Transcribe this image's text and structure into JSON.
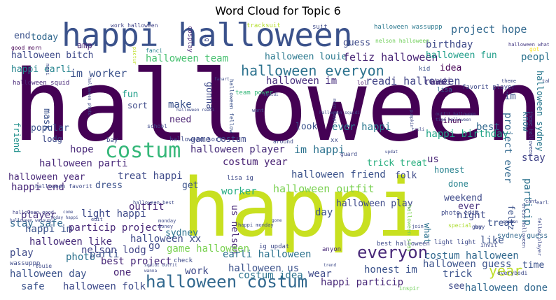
{
  "title": "Word Cloud for Topic 6",
  "words": [
    {
      "text": "halloween",
      "color": "#440154"
    },
    {
      "text": "happi",
      "color": "#c8e020"
    },
    {
      "text": "happi halloween",
      "color": "#3b528b"
    },
    {
      "text": "costum",
      "color": "#35b779"
    },
    {
      "text": "halloween costum",
      "color": "#31688e"
    },
    {
      "text": "halloween everyon",
      "color": "#2c728e"
    },
    {
      "text": "everyon",
      "color": "#482878"
    },
    {
      "text": "year",
      "color": "#bddf26"
    },
    {
      "text": "project hope",
      "color": "#31688e"
    },
    {
      "text": "birthday",
      "color": "#3e4a89"
    },
    {
      "text": "halloween bitch",
      "color": "#3e4989"
    },
    {
      "text": "halloween team",
      "color": "#46c06f"
    },
    {
      "text": "halloween louie",
      "color": "#2a788e"
    },
    {
      "text": "feliz halloween",
      "color": "#482475"
    },
    {
      "text": "halloween fun",
      "color": "#1f9e89"
    },
    {
      "text": "halloween im",
      "color": "#472f7d"
    },
    {
      "text": "readi halloween",
      "color": "#414487"
    },
    {
      "text": "im worker",
      "color": "#3b528b"
    },
    {
      "text": "happi earli",
      "color": "#25848e"
    },
    {
      "text": "halloween squid",
      "color": "#482878"
    },
    {
      "text": "halloween sydney",
      "color": "#2a788e"
    },
    {
      "text": "idea",
      "color": "#440154"
    },
    {
      "text": "peopl",
      "color": "#2c728e"
    },
    {
      "text": "readi",
      "color": "#46337e"
    },
    {
      "text": "guess",
      "color": "#3e4a89"
    },
    {
      "text": "amp",
      "color": "#482475"
    },
    {
      "text": "end",
      "color": "#3b528b"
    },
    {
      "text": "today",
      "color": "#31688e"
    },
    {
      "text": "good morn",
      "color": "#440154"
    },
    {
      "text": "work halloween",
      "color": "#414487"
    },
    {
      "text": "tracksuit",
      "color": "#b5de2b"
    },
    {
      "text": "suit",
      "color": "#3e4a89"
    },
    {
      "text": "halloween wassuppp",
      "color": "#2a788e"
    },
    {
      "text": "nelson halloween",
      "color": "#6ece58"
    },
    {
      "text": "cosplay",
      "color": "#482878"
    },
    {
      "text": "ig",
      "color": "#3e4a89"
    },
    {
      "text": "fanci",
      "color": "#26828e"
    },
    {
      "text": "pictur",
      "color": "#bddf26"
    },
    {
      "text": "got",
      "color": "#fde725"
    },
    {
      "text": "halloween what",
      "color": "#443983"
    },
    {
      "text": "lisa",
      "color": "#31688e"
    },
    {
      "text": "favorit player",
      "color": "#3e4989"
    },
    {
      "text": "kid",
      "color": "#3b528b"
    },
    {
      "text": "made",
      "color": "#472d7b"
    },
    {
      "text": "lol",
      "color": "#481668"
    },
    {
      "text": "team power",
      "color": "#35b779"
    },
    {
      "text": "halloween fellow",
      "color": "#3b528b"
    },
    {
      "text": "make",
      "color": "#3b528b"
    },
    {
      "text": "fun",
      "color": "#1f9e89"
    },
    {
      "text": "sort",
      "color": "#3e4a89"
    },
    {
      "text": "need",
      "color": "#481f70"
    },
    {
      "text": "mask",
      "color": "#3b528b"
    },
    {
      "text": "friend",
      "color": "#21918c"
    },
    {
      "text": "popular",
      "color": "#3b528b"
    },
    {
      "text": "lodg",
      "color": "#3e4a89"
    },
    {
      "text": "hope",
      "color": "#482878"
    },
    {
      "text": "halloween parti",
      "color": "#482878"
    },
    {
      "text": "halloween player",
      "color": "#472c7a"
    },
    {
      "text": "game costum",
      "color": "#3e4a89"
    },
    {
      "text": "costum year",
      "color": "#482173"
    },
    {
      "text": "im happi",
      "color": "#2c728e"
    },
    {
      "text": "look",
      "color": "#3b528b"
    },
    {
      "text": "ever happi",
      "color": "#2a788e"
    },
    {
      "text": "happi birthday",
      "color": "#20a486"
    },
    {
      "text": "best",
      "color": "#31688e"
    },
    {
      "text": "stay",
      "color": "#414487"
    },
    {
      "text": "know",
      "color": "#2c728e"
    },
    {
      "text": "project ever",
      "color": "#31688e"
    },
    {
      "text": "im",
      "color": "#3b528b"
    },
    {
      "text": "us",
      "color": "#482475"
    },
    {
      "text": "trick treat",
      "color": "#29af7f"
    },
    {
      "text": "honest",
      "color": "#26828e"
    },
    {
      "text": "folk",
      "color": "#3e4a89"
    },
    {
      "text": "halloween friend",
      "color": "#3b528b"
    },
    {
      "text": "worker",
      "color": "#25ab82"
    },
    {
      "text": "get",
      "color": "#3b528b"
    },
    {
      "text": "treat happi",
      "color": "#3e4a89"
    },
    {
      "text": "halloween year",
      "color": "#482878"
    },
    {
      "text": "happi end",
      "color": "#482878"
    },
    {
      "text": "dress",
      "color": "#3b528b"
    },
    {
      "text": "halloween outfit",
      "color": "#7ad151"
    },
    {
      "text": "halloween play",
      "color": "#3e4a89"
    },
    {
      "text": "done",
      "color": "#26828e"
    },
    {
      "text": "weekend",
      "color": "#3e4a89"
    },
    {
      "text": "particip",
      "color": "#2c728e"
    },
    {
      "text": "feliz",
      "color": "#3b528b"
    },
    {
      "text": "stay safe",
      "color": "#31688e"
    },
    {
      "text": "halloween good",
      "color": "#414487"
    },
    {
      "text": "player",
      "color": "#46327e"
    },
    {
      "text": "light happi",
      "color": "#3e4a89"
    },
    {
      "text": "outfit",
      "color": "#482878"
    },
    {
      "text": "day",
      "color": "#3b528b"
    },
    {
      "text": "ever",
      "color": "#472f7d"
    },
    {
      "text": "night",
      "color": "#3e4a89"
    },
    {
      "text": "treat",
      "color": "#3b528b"
    },
    {
      "text": "happi im",
      "color": "#3b528b"
    },
    {
      "text": "particip project",
      "color": "#482878"
    },
    {
      "text": "halloween xx",
      "color": "#3e4a89"
    },
    {
      "text": "us nelson",
      "color": "#482878"
    },
    {
      "text": "what",
      "color": "#2c728e"
    },
    {
      "text": "like",
      "color": "#3b528b"
    },
    {
      "text": "halloween like",
      "color": "#472c7a"
    },
    {
      "text": "nelson lodg",
      "color": "#414487"
    },
    {
      "text": "go",
      "color": "#3e4a89"
    },
    {
      "text": "game halloween",
      "color": "#7ad151"
    },
    {
      "text": "earli halloween",
      "color": "#2c728e"
    },
    {
      "text": "costum halloween",
      "color": "#31688e"
    },
    {
      "text": "halloween guess",
      "color": "#3b528b"
    },
    {
      "text": "time",
      "color": "#3b528b"
    },
    {
      "text": "play",
      "color": "#3e4a89"
    },
    {
      "text": "photo",
      "color": "#2c728e"
    },
    {
      "text": "parti",
      "color": "#3b528b"
    },
    {
      "text": "best project",
      "color": "#482878"
    },
    {
      "text": "halloween us",
      "color": "#3b528b"
    },
    {
      "text": "work",
      "color": "#3e4a89"
    },
    {
      "text": "costum idea",
      "color": "#2c728e"
    },
    {
      "text": "wear",
      "color": "#3e4a89"
    },
    {
      "text": "honest im",
      "color": "#3b528b"
    },
    {
      "text": "trick",
      "color": "#3b528b"
    },
    {
      "text": "halloween day",
      "color": "#3b528b"
    },
    {
      "text": "one",
      "color": "#482475"
    },
    {
      "text": "safe",
      "color": "#3b528b"
    },
    {
      "text": "halloween folk",
      "color": "#3e4a89"
    },
    {
      "text": "happi particip",
      "color": "#482878"
    },
    {
      "text": "see",
      "color": "#3e4a89"
    },
    {
      "text": "halloween done",
      "color": "#31688e"
    },
    {
      "text": "gonna",
      "color": "#3e4a89"
    },
    {
      "text": "gihun",
      "color": "#440154"
    },
    {
      "text": "sydney",
      "color": "#2c728e"
    },
    {
      "text": "sydney guess",
      "color": "#31688e"
    },
    {
      "text": "best halloween",
      "color": "#3e4a89"
    },
    {
      "text": "light light",
      "color": "#3e4a89"
    },
    {
      "text": "ig updat",
      "color": "#3e4a89"
    },
    {
      "text": "anyon",
      "color": "#482878"
    },
    {
      "text": "photo edit",
      "color": "#3e4a89"
    },
    {
      "text": "wassuppp",
      "color": "#3e4a89"
    },
    {
      "text": "louie",
      "color": "#3e4a89"
    },
    {
      "text": "check",
      "color": "#3e4a89"
    },
    {
      "text": "inspir",
      "color": "#6ece58"
    },
    {
      "text": "everybodi",
      "color": "#3e4a89"
    },
    {
      "text": "invit",
      "color": "#3e4a89"
    },
    {
      "text": "guy",
      "color": "#3e4a89"
    },
    {
      "text": "special",
      "color": "#addc30"
    },
    {
      "text": "buy",
      "color": "#3e4a89"
    },
    {
      "text": "halloween stay",
      "color": "#7ad151"
    },
    {
      "text": "happi monday",
      "color": "#3e4a89"
    },
    {
      "text": "school",
      "color": "#3e4a89"
    },
    {
      "text": "around",
      "color": "#3e4a89"
    },
    {
      "text": "guard",
      "color": "#3e4a89"
    },
    {
      "text": "xx",
      "color": "#3e4a89"
    },
    {
      "text": "lisa ig",
      "color": "#3e4a89"
    },
    {
      "text": "bay",
      "color": "#3e4a89"
    },
    {
      "text": "halloween sort",
      "color": "#3e4a89"
    },
    {
      "text": "halloween best",
      "color": "#3e4a89"
    },
    {
      "text": "halloween favorit",
      "color": "#3e4a89"
    },
    {
      "text": "join",
      "color": "#3e4a89"
    },
    {
      "text": "edit",
      "color": "#3e4a89"
    },
    {
      "text": "monday",
      "color": "#3e4a89"
    },
    {
      "text": "money",
      "color": "#3e4a89"
    },
    {
      "text": "today happi",
      "color": "#3e4a89"
    },
    {
      "text": "come",
      "color": "#3e4a89"
    },
    {
      "text": "trend",
      "color": "#3e4a89"
    },
    {
      "text": "wanna",
      "color": "#3e4a89"
    },
    {
      "text": "squidi outfit",
      "color": "#3e4a89"
    },
    {
      "text": "fellow player",
      "color": "#3e4a89"
    },
    {
      "text": "dress halloween",
      "color": "#3e4a89"
    },
    {
      "text": "earli",
      "color": "#3e4a89"
    },
    {
      "text": "cant",
      "color": "#3e4a89"
    },
    {
      "text": "want",
      "color": "#3e4a89"
    },
    {
      "text": "halloween readi",
      "color": "#3e4a89"
    },
    {
      "text": "halloween photo",
      "color": "#3e4a89"
    },
    {
      "text": "fanart",
      "color": "#3e4a89"
    },
    {
      "text": "squidi",
      "color": "#3e4a89"
    },
    {
      "text": "truli",
      "color": "#3e4a89"
    },
    {
      "text": "pumpkin",
      "color": "#3e4a89"
    },
    {
      "text": "outfit halloween",
      "color": "#3e4a89"
    },
    {
      "text": "time halloween",
      "color": "#3e4a89"
    },
    {
      "text": "theme halloween",
      "color": "#3e4a89"
    },
    {
      "text": "theme",
      "color": "#3e4a89"
    },
    {
      "text": "take",
      "color": "#3e4a89"
    },
    {
      "text": "updat",
      "color": "#3e4a89"
    },
    {
      "text": "mani",
      "color": "#3e4a89"
    },
    {
      "text": "morn happi",
      "color": "#3e4a89"
    },
    {
      "text": "halloween squidi",
      "color": "#3e4a89"
    },
    {
      "text": "halloween wassupp",
      "color": "#3e4a89"
    },
    {
      "text": "gone",
      "color": "#3e4a89"
    },
    {
      "text": "someon",
      "color": "#3e4a89"
    }
  ]
}
